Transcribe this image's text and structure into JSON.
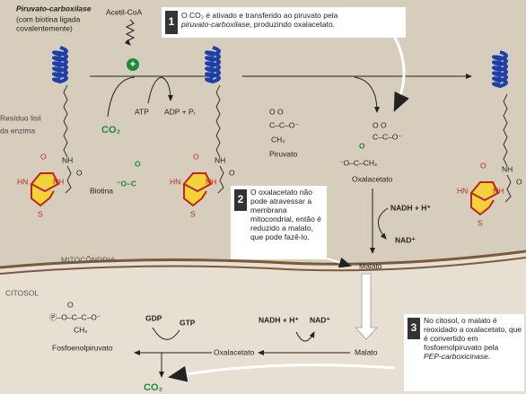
{
  "enzyme": {
    "name": "Piruvato-carboxilase",
    "note": [
      "(com biotina ligada",
      "covalentemente)"
    ]
  },
  "acetyl": "Acetil-CoA",
  "plus": "+",
  "co2": "CO₂",
  "atp": "ATP",
  "adp": "ADP + Pᵢ",
  "lysyl": [
    "Resíduo lisil",
    "da enzima"
  ],
  "biotin_label": "Biotina",
  "biotin": {
    "hn": "HN",
    "nh": "NH",
    "s": "S",
    "o": "O",
    "link_nh": "NH"
  },
  "carboxyl": {
    "o": "O",
    "chain": "⁻O–C"
  },
  "steps": [
    {
      "number": "1",
      "parts": [
        "O CO₂ é ativado e transferido ao piruvato pela ",
        "piruvato-carboxilase",
        ", produzindo oxalacetato."
      ]
    },
    {
      "number": "2",
      "parts": [
        "O oxalacetato não pode atravessar a membrana mitocondrial, então é reduzido a malato, que pode fazê-lo."
      ]
    },
    {
      "number": "3",
      "parts": [
        "No citosol, o malato é reoxidado a oxalacetato, que é convertido em fosfoenolpiruvato pela ",
        "PEP-carboxicinase",
        "."
      ]
    }
  ],
  "pyruvate": {
    "oo": "O  O",
    "chain": "C–C–O⁻",
    "ch3": "CH₃",
    "label": "Piruvato"
  },
  "oxaloacetate": {
    "o": "O",
    "oo": "O  O",
    "chain": "C–C–O⁻",
    "left": "⁻O–C–CH₂",
    "label": "Oxalacetato"
  },
  "mito": {
    "nadh": "NADH + H⁺",
    "nad": "NAD⁺",
    "malate": "Malato",
    "label": "MITOCÔNDRIA"
  },
  "cyto": {
    "label": "CITOSOL",
    "pep": {
      "o": "O",
      "chain": "Ⓟ–O–C–C–O⁻",
      "ch2": "CH₂",
      "label": "Fosfoenolpiruvato"
    },
    "gdp": "GDP",
    "gtp": "GTP",
    "co2": "CO₂",
    "oxaloacetate": "Oxalacetato",
    "malate": "Malato",
    "nadh": "NADH + H⁺",
    "nad": "NAD⁺"
  }
}
